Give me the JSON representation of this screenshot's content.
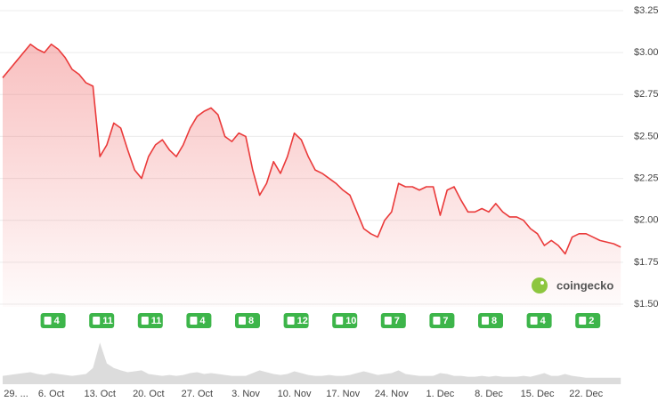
{
  "chart_data": {
    "type": "line",
    "categories": [
      "29. ...",
      null,
      null,
      null,
      null,
      null,
      null,
      "6. Oct",
      null,
      null,
      null,
      null,
      null,
      null,
      "13. Oct",
      null,
      null,
      null,
      null,
      null,
      null,
      "20. Oct",
      null,
      null,
      null,
      null,
      null,
      null,
      "27. Oct",
      null,
      null,
      null,
      null,
      null,
      null,
      "3. Nov",
      null,
      null,
      null,
      null,
      null,
      null,
      "10. Nov",
      null,
      null,
      null,
      null,
      null,
      null,
      "17. Nov",
      null,
      null,
      null,
      null,
      null,
      null,
      "24. Nov",
      null,
      null,
      null,
      null,
      null,
      null,
      "1. Dec",
      null,
      null,
      null,
      null,
      null,
      null,
      "8. Dec",
      null,
      null,
      null,
      null,
      null,
      null,
      "15. Dec",
      null,
      null,
      null,
      null,
      null,
      null,
      "22. Dec",
      null,
      null,
      null,
      null,
      null
    ],
    "series": [
      {
        "name": "Price",
        "color": "#ea3a3a",
        "values": [
          2.85,
          2.9,
          2.95,
          3.0,
          3.05,
          3.02,
          3.0,
          3.05,
          3.02,
          2.97,
          2.9,
          2.87,
          2.82,
          2.8,
          2.38,
          2.45,
          2.58,
          2.55,
          2.42,
          2.3,
          2.25,
          2.38,
          2.45,
          2.48,
          2.42,
          2.38,
          2.45,
          2.55,
          2.62,
          2.65,
          2.67,
          2.63,
          2.5,
          2.47,
          2.52,
          2.5,
          2.3,
          2.15,
          2.22,
          2.35,
          2.28,
          2.38,
          2.52,
          2.48,
          2.38,
          2.3,
          2.28,
          2.25,
          2.22,
          2.18,
          2.15,
          2.05,
          1.95,
          1.92,
          1.9,
          2.0,
          2.05,
          2.22,
          2.2,
          2.2,
          2.18,
          2.2,
          2.2,
          2.03,
          2.18,
          2.2,
          2.12,
          2.05,
          2.05,
          2.07,
          2.05,
          2.1,
          2.05,
          2.02,
          2.02,
          2.0,
          1.95,
          1.92,
          1.85,
          1.88,
          1.85,
          1.8,
          1.9,
          1.92,
          1.92,
          1.9,
          1.88,
          1.87,
          1.86,
          1.84
        ]
      },
      {
        "name": "Volume",
        "color": "#dcdcdc",
        "axis": "y2",
        "values": [
          18,
          20,
          22,
          24,
          26,
          22,
          20,
          24,
          22,
          20,
          18,
          20,
          22,
          35,
          90,
          45,
          35,
          30,
          26,
          28,
          30,
          22,
          20,
          18,
          20,
          18,
          20,
          24,
          26,
          22,
          24,
          22,
          20,
          18,
          18,
          18,
          24,
          30,
          26,
          22,
          20,
          22,
          28,
          24,
          20,
          18,
          18,
          20,
          18,
          18,
          20,
          24,
          28,
          24,
          20,
          22,
          24,
          30,
          22,
          20,
          18,
          18,
          18,
          24,
          22,
          18,
          18,
          16,
          16,
          18,
          16,
          18,
          16,
          16,
          16,
          18,
          16,
          20,
          24,
          18,
          18,
          22,
          18,
          16,
          14,
          14,
          14,
          14,
          14,
          14
        ]
      }
    ],
    "ylim": [
      1.5,
      3.25
    ],
    "yticks": [
      {
        "value": 1.5,
        "label": "$1.50"
      },
      {
        "value": 1.75,
        "label": "$1.75"
      },
      {
        "value": 2.0,
        "label": "$2.00"
      },
      {
        "value": 2.25,
        "label": "$2.25"
      },
      {
        "value": 2.5,
        "label": "$2.50"
      },
      {
        "value": 2.75,
        "label": "$2.75"
      },
      {
        "value": 3.0,
        "label": "$3.00"
      },
      {
        "value": 3.25,
        "label": "$3.25"
      }
    ],
    "y2lim": [
      0,
      100
    ],
    "grid": true,
    "badge_counts": [
      4,
      11,
      11,
      4,
      8,
      12,
      10,
      7,
      7,
      8,
      4,
      2
    ],
    "badge_color": "#3db54a",
    "watermark": "coingecko"
  }
}
